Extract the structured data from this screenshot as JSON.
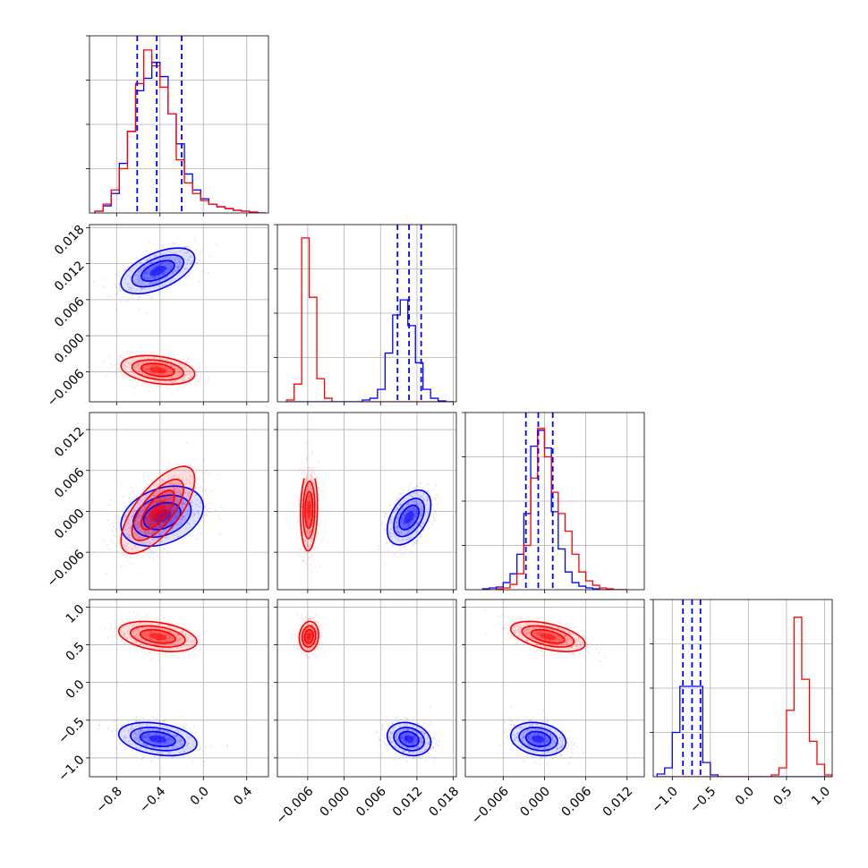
{
  "chart_data": {
    "type": "corner",
    "colors": {
      "blue": "#0000ff",
      "red": "#ff0000"
    },
    "grid": true,
    "parameters": [
      {
        "range": [
          -1.05,
          0.6
        ],
        "ticks": [
          {
            "v": -0.8,
            "label": "−0.8"
          },
          {
            "v": -0.4,
            "label": "−0.4"
          },
          {
            "v": 0.0,
            "label": "0.0"
          },
          {
            "v": 0.4,
            "label": "0.4"
          }
        ]
      },
      {
        "range": [
          -0.011,
          0.0185
        ],
        "ticks": [
          {
            "v": -0.006,
            "label": "−0.006"
          },
          {
            "v": 0.0,
            "label": "0.000"
          },
          {
            "v": 0.006,
            "label": "0.006"
          },
          {
            "v": 0.012,
            "label": "0.012"
          },
          {
            "v": 0.018,
            "label": "0.018"
          }
        ]
      },
      {
        "range": [
          -0.0115,
          0.0145
        ],
        "ticks": [
          {
            "v": -0.006,
            "label": "−0.006"
          },
          {
            "v": 0.0,
            "label": "0.000"
          },
          {
            "v": 0.006,
            "label": "0.006"
          },
          {
            "v": 0.012,
            "label": "0.012"
          }
        ]
      },
      {
        "range": [
          -1.25,
          1.1
        ],
        "ticks": [
          {
            "v": -1.0,
            "label": "−1.0"
          },
          {
            "v": -0.5,
            "label": "−0.5"
          },
          {
            "v": 0.0,
            "label": "0.0"
          },
          {
            "v": 0.5,
            "label": "0.5"
          },
          {
            "v": 1.0,
            "label": "1.0"
          }
        ]
      }
    ],
    "hist_ymax": [
      0.2,
      0.2,
      0.2,
      0.2
    ],
    "histograms": [
      {
        "edges": [
          -1.0,
          -0.925,
          -0.85,
          -0.775,
          -0.7,
          -0.625,
          -0.55,
          -0.475,
          -0.4,
          -0.325,
          -0.25,
          -0.175,
          -0.1,
          -0.025,
          0.05,
          0.125,
          0.2,
          0.275,
          0.35,
          0.425,
          0.5,
          0.575
        ],
        "quantiles": [
          -0.61,
          -0.43,
          -0.2
        ],
        "series": [
          {
            "name": "blue",
            "counts": [
              0.002,
              0.008,
              0.022,
              0.056,
              0.092,
              0.138,
              0.152,
              0.17,
              0.154,
              0.112,
              0.078,
              0.044,
              0.026,
              0.016,
              0.01,
              0.007,
              0.005,
              0.003,
              0.002,
              0.001,
              0.0
            ]
          },
          {
            "name": "red",
            "counts": [
              0.002,
              0.01,
              0.026,
              0.05,
              0.092,
              0.146,
              0.184,
              0.166,
              0.142,
              0.112,
              0.06,
              0.034,
              0.022,
              0.014,
              0.01,
              0.007,
              0.005,
              0.003,
              0.002,
              0.001,
              0.0
            ]
          }
        ]
      },
      {
        "edges": [
          -0.0095,
          -0.00825,
          -0.007,
          -0.00575,
          -0.0045,
          -0.00325,
          -0.002,
          -0.00075,
          0.0005,
          0.00175,
          0.003,
          0.00425,
          0.0055,
          0.00675,
          0.008,
          0.00925,
          0.0105,
          0.01175,
          0.013,
          0.01425,
          0.0155,
          0.01675,
          0.018
        ],
        "quantiles": [
          0.0088,
          0.0107,
          0.0127
        ],
        "series": [
          {
            "name": "red",
            "counts": [
              0.002,
              0.02,
              0.185,
              0.118,
              0.026,
              0.004,
              0.0,
              0.0,
              0.0,
              0.0,
              0.0,
              0.0,
              0.0,
              0.0,
              0.0,
              0.0,
              0.0,
              0.0,
              0.0,
              0.0,
              0.0,
              0.0
            ]
          },
          {
            "name": "blue",
            "counts": [
              0.0,
              0.0,
              0.0,
              0.0,
              0.0,
              0.0,
              0.0,
              0.0,
              0.0,
              0.0,
              0.002,
              0.004,
              0.014,
              0.055,
              0.098,
              0.115,
              0.086,
              0.044,
              0.014,
              0.004,
              0.001,
              0.0
            ]
          }
        ]
      },
      {
        "edges": [
          -0.009,
          -0.008,
          -0.007,
          -0.006,
          -0.005,
          -0.004,
          -0.003,
          -0.002,
          -0.001,
          0.0,
          0.001,
          0.002,
          0.003,
          0.004,
          0.005,
          0.006,
          0.007,
          0.008,
          0.009,
          0.01,
          0.011,
          0.012
        ],
        "quantiles": [
          -0.0027,
          -0.0009,
          0.0012
        ],
        "series": [
          {
            "name": "blue",
            "counts": [
              0.001,
              0.002,
              0.003,
              0.008,
              0.018,
              0.04,
              0.086,
              0.162,
              0.18,
              0.16,
              0.088,
              0.046,
              0.02,
              0.008,
              0.004,
              0.002,
              0.001,
              0.0,
              0.0,
              0.0,
              0.0
            ]
          },
          {
            "name": "red",
            "counts": [
              0.0,
              0.0,
              0.001,
              0.002,
              0.006,
              0.018,
              0.05,
              0.126,
              0.182,
              0.15,
              0.11,
              0.086,
              0.066,
              0.04,
              0.02,
              0.01,
              0.005,
              0.002,
              0.001,
              0.0,
              0.0
            ]
          }
        ]
      },
      {
        "edges": [
          -1.2,
          -1.1,
          -1.0,
          -0.9,
          -0.8,
          -0.7,
          -0.6,
          -0.5,
          -0.4,
          -0.3,
          -0.2,
          -0.1,
          0.0,
          0.1,
          0.2,
          0.3,
          0.4,
          0.5,
          0.6,
          0.7,
          0.8,
          0.9,
          1.0,
          1.1
        ],
        "quantiles": [
          -0.86,
          -0.74,
          -0.63
        ],
        "series": [
          {
            "name": "blue",
            "counts": [
              0.003,
              0.01,
              0.05,
              0.102,
              0.102,
              0.102,
              0.016,
              0.002,
              0.0,
              0.0,
              0.0,
              0.0,
              0.0,
              0.0,
              0.0,
              0.0,
              0.0,
              0.0,
              0.0,
              0.0,
              0.0,
              0.0,
              0.0
            ]
          },
          {
            "name": "red",
            "counts": [
              0.0,
              0.0,
              0.0,
              0.0,
              0.0,
              0.0,
              0.0,
              0.0,
              0.0,
              0.0,
              0.0,
              0.0,
              0.0,
              0.0,
              0.0,
              0.002,
              0.01,
              0.075,
              0.18,
              0.11,
              0.04,
              0.014,
              0.002
            ]
          }
        ]
      }
    ],
    "joint": {
      "1-0": [
        {
          "name": "blue",
          "center": [
            -0.42,
            0.0108
          ],
          "sigma": [
            0.17,
            0.0019
          ],
          "rho": 0.55
        },
        {
          "name": "red",
          "center": [
            -0.42,
            -0.0057
          ],
          "sigma": [
            0.17,
            0.0012
          ],
          "rho": -0.3
        }
      ],
      "2-0": [
        {
          "name": "blue",
          "center": [
            -0.38,
            -0.0007
          ],
          "sigma": [
            0.19,
            0.0022
          ],
          "rho": 0.3
        },
        {
          "name": "red",
          "center": [
            -0.42,
            0.0002
          ],
          "sigma": [
            0.17,
            0.0032
          ],
          "rho": 0.7
        }
      ],
      "2-1": [
        {
          "name": "red",
          "center": [
            -0.0058,
            0.0002
          ],
          "sigma": [
            0.0007,
            0.003
          ],
          "rho": 0.1
        },
        {
          "name": "blue",
          "center": [
            0.0107,
            -0.0009
          ],
          "sigma": [
            0.0018,
            0.002
          ],
          "rho": 0.45
        }
      ],
      "3-0": [
        {
          "name": "red",
          "center": [
            -0.42,
            0.61
          ],
          "sigma": [
            0.18,
            0.1
          ],
          "rho": -0.35
        },
        {
          "name": "blue",
          "center": [
            -0.42,
            -0.75
          ],
          "sigma": [
            0.18,
            0.11
          ],
          "rho": -0.3
        }
      ],
      "3-1": [
        {
          "name": "red",
          "center": [
            -0.0058,
            0.61
          ],
          "sigma": [
            0.0008,
            0.1
          ],
          "rho": 0.1
        },
        {
          "name": "blue",
          "center": [
            0.0107,
            -0.75
          ],
          "sigma": [
            0.0018,
            0.11
          ],
          "rho": -0.2
        }
      ],
      "3-2": [
        {
          "name": "red",
          "center": [
            0.0005,
            0.61
          ],
          "sigma": [
            0.0027,
            0.1
          ],
          "rho": -0.5
        },
        {
          "name": "blue",
          "center": [
            -0.0009,
            -0.75
          ],
          "sigma": [
            0.002,
            0.11
          ],
          "rho": -0.2
        }
      ]
    }
  }
}
